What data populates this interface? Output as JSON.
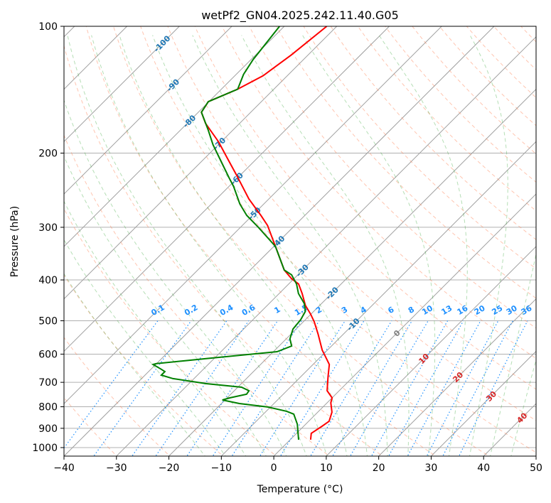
{
  "chart_data": {
    "type": "line",
    "subtype": "skew-t log-p",
    "title": "wetPf2_GN04.2025.242.11.40.G05",
    "xlabel": "Temperature (°C)",
    "ylabel": "Pressure (hPa)",
    "xlim": [
      -40,
      50
    ],
    "ylim": [
      1050,
      100
    ],
    "x_ticks": [
      "−40",
      "−30",
      "−20",
      "−10",
      "0",
      "10",
      "20",
      "30",
      "40",
      "50"
    ],
    "x_tick_values": [
      -40,
      -30,
      -20,
      -10,
      0,
      10,
      20,
      30,
      40,
      50
    ],
    "y_ticks": [
      "100",
      "200",
      "300",
      "400",
      "500",
      "600",
      "700",
      "800",
      "900",
      "1000"
    ],
    "y_tick_values": [
      100,
      200,
      300,
      400,
      500,
      600,
      700,
      800,
      900,
      1000
    ],
    "grid": true,
    "isotherm_labels": {
      "values": [
        "-100",
        "-90",
        "-80",
        "-70",
        "-60",
        "-50",
        "-40",
        "-30",
        "-20",
        "-10",
        "0",
        "10",
        "20",
        "30",
        "40"
      ],
      "numbers": [
        -100,
        -90,
        -80,
        -70,
        -60,
        -50,
        -40,
        -30,
        -20,
        -10,
        0,
        10,
        20,
        30,
        40
      ],
      "label_pressures": [
        110,
        138,
        168,
        190,
        230,
        278,
        325,
        380,
        430,
        475,
        535,
        615,
        680,
        755,
        850
      ],
      "negative_color": "#1f77b4",
      "zero_color": "#808080",
      "positive_color": "#d62728"
    },
    "mixing_ratio_labels": {
      "values": [
        "0.1",
        "0.2",
        "0.4",
        "0.6",
        "1",
        "1.5",
        "2",
        "3",
        "4",
        "6",
        "8",
        "10",
        "13",
        "16",
        "20",
        "25",
        "30",
        "36"
      ],
      "numbers": [
        0.1,
        0.2,
        0.4,
        0.6,
        1,
        1.5,
        2,
        3,
        4,
        6,
        8,
        10,
        13,
        16,
        20,
        25,
        30,
        36
      ],
      "color": "#1e90ff"
    },
    "series": [
      {
        "name": "temperature",
        "color": "#ff0000",
        "points": [
          [
            958,
            3.9
          ],
          [
            925,
            2.8
          ],
          [
            890,
            3.5
          ],
          [
            866,
            3.9
          ],
          [
            824,
            2.7
          ],
          [
            783,
            0.7
          ],
          [
            762,
            0.0
          ],
          [
            733,
            -2.3
          ],
          [
            679,
            -4.8
          ],
          [
            635,
            -6.9
          ],
          [
            604,
            -9.5
          ],
          [
            587,
            -11.0
          ],
          [
            537,
            -14.9
          ],
          [
            503,
            -17.9
          ],
          [
            482,
            -20.1
          ],
          [
            460,
            -22.7
          ],
          [
            431,
            -25.6
          ],
          [
            409,
            -28.1
          ],
          [
            397,
            -30.5
          ],
          [
            379,
            -33.5
          ],
          [
            333,
            -39.7
          ],
          [
            297,
            -45.2
          ],
          [
            281,
            -48.4
          ],
          [
            257,
            -53.8
          ],
          [
            226,
            -60.6
          ],
          [
            206,
            -65.6
          ],
          [
            188,
            -70.5
          ],
          [
            170,
            -76.5
          ],
          [
            160,
            -79.4
          ],
          [
            151,
            -80.1
          ],
          [
            141,
            -76.9
          ],
          [
            131,
            -74.6
          ],
          [
            117,
            -73.2
          ],
          [
            100,
            -71.9
          ]
        ]
      },
      {
        "name": "dewpoint",
        "color": "#008000",
        "points": [
          [
            958,
            1.6
          ],
          [
            880,
            -1.6
          ],
          [
            833,
            -4.2
          ],
          [
            820,
            -6.1
          ],
          [
            801,
            -10.5
          ],
          [
            786,
            -16.6
          ],
          [
            771,
            -20.5
          ],
          [
            762,
            -19.5
          ],
          [
            747,
            -17.0
          ],
          [
            733,
            -17.2
          ],
          [
            719,
            -19.3
          ],
          [
            705,
            -26.7
          ],
          [
            686,
            -34.0
          ],
          [
            673,
            -36.9
          ],
          [
            660,
            -36.9
          ],
          [
            652,
            -38.0
          ],
          [
            635,
            -40.5
          ],
          [
            632,
            -40.0
          ],
          [
            615,
            -31.5
          ],
          [
            592,
            -19.3
          ],
          [
            574,
            -17.6
          ],
          [
            552,
            -19.3
          ],
          [
            523,
            -20.6
          ],
          [
            497,
            -20.9
          ],
          [
            475,
            -21.6
          ],
          [
            455,
            -23.3
          ],
          [
            431,
            -26.3
          ],
          [
            409,
            -28.5
          ],
          [
            389,
            -31.2
          ],
          [
            379,
            -33.5
          ],
          [
            333,
            -39.7
          ],
          [
            300,
            -46.6
          ],
          [
            281,
            -51.1
          ],
          [
            264,
            -54.6
          ],
          [
            240,
            -59.1
          ],
          [
            229,
            -61.6
          ],
          [
            212,
            -65.6
          ],
          [
            191,
            -71.0
          ],
          [
            176,
            -74.8
          ],
          [
            160,
            -79.4
          ],
          [
            151,
            -80.1
          ],
          [
            141,
            -76.9
          ],
          [
            130,
            -78.6
          ],
          [
            120,
            -79.6
          ],
          [
            100,
            -80.9
          ]
        ]
      }
    ]
  }
}
